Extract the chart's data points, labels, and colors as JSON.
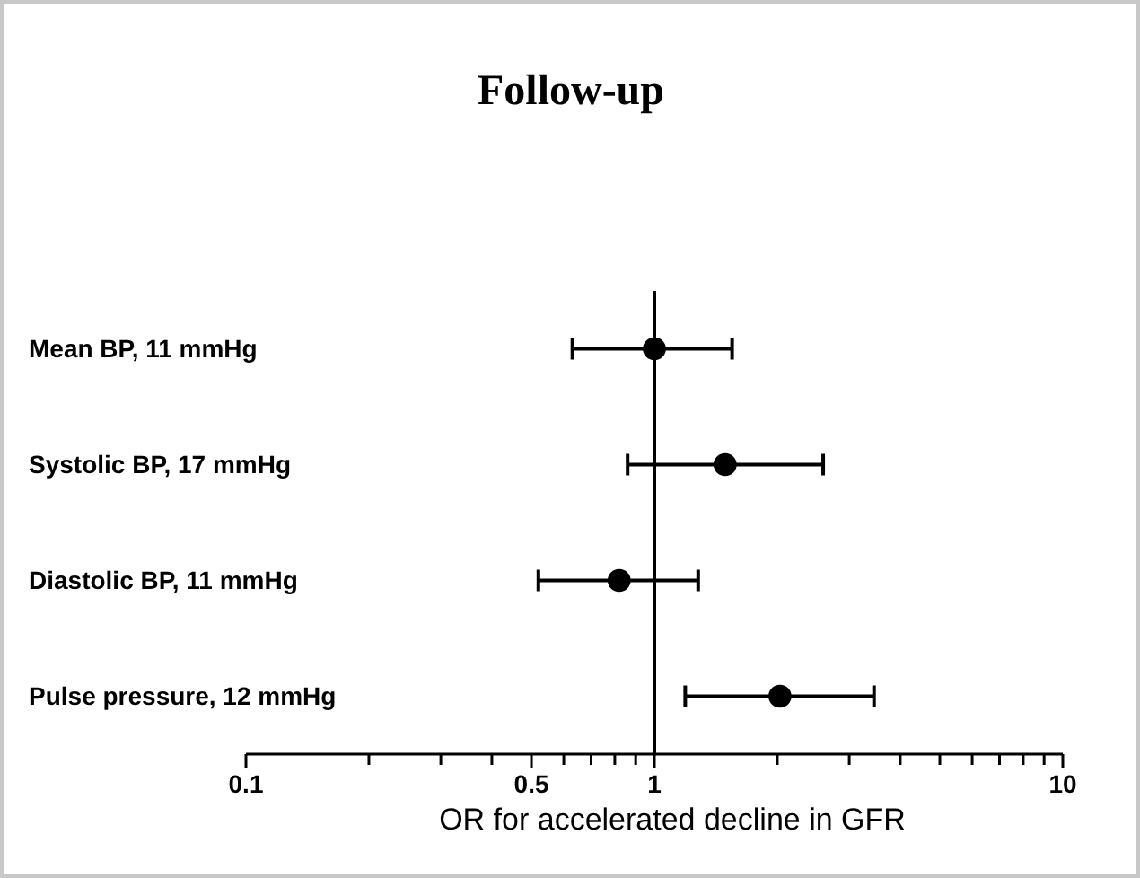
{
  "chart_data": {
    "type": "scatter",
    "title": "Follow-up",
    "xlabel": "OR for accelerated decline in GFR",
    "orientation": "horizontal",
    "marker": "circle",
    "color": "#000000",
    "categories": [
      "Mean BP, 11 mmHg",
      "Systolic BP, 17 mmHg",
      "Diastolic BP, 11 mmHg",
      "Pulse pressure, 12 mmHg"
    ],
    "values": [
      1.0,
      1.49,
      0.82,
      2.03
    ],
    "errors": [
      [
        0.63,
        1.55
      ],
      [
        0.86,
        2.59
      ],
      [
        0.52,
        1.28
      ],
      [
        1.19,
        3.45
      ]
    ],
    "log": "x",
    "xlim": [
      0.1,
      10
    ],
    "xticks": [
      0.1,
      {
        "value": 0.2,
        "label": null
      },
      {
        "value": 0.3,
        "label": null
      },
      {
        "value": 0.4,
        "label": null
      },
      0.5,
      {
        "value": 0.6,
        "label": null
      },
      {
        "value": 0.7,
        "label": null
      },
      {
        "value": 0.8,
        "label": null
      },
      {
        "value": 0.9,
        "label": null
      },
      1,
      {
        "value": 2,
        "label": null
      },
      {
        "value": 3,
        "label": null
      },
      {
        "value": 4,
        "label": null
      },
      {
        "value": 5,
        "label": null
      },
      {
        "value": 6,
        "label": null
      },
      {
        "value": 7,
        "label": null
      },
      {
        "value": 8,
        "label": null
      },
      {
        "value": 9,
        "label": null
      },
      10
    ],
    "ref_lines": [
      {
        "axis": "x",
        "value": 1,
        "label": null
      }
    ]
  }
}
